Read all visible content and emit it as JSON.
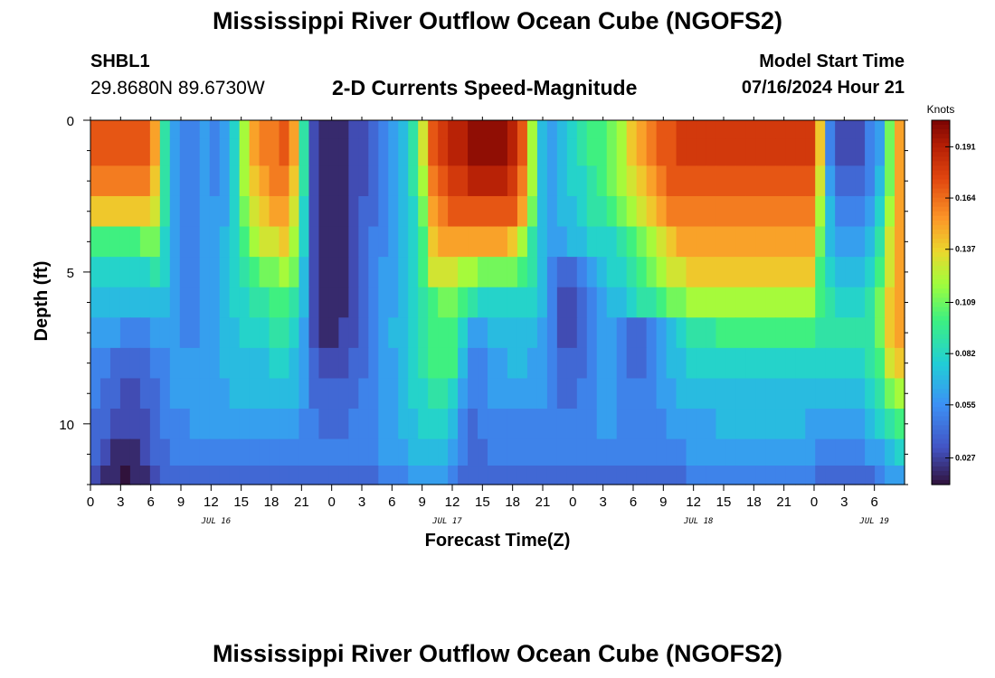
{
  "title": "Mississippi River Outflow Ocean Cube (NGOFS2)",
  "title_repeat": "Mississippi River Outflow Ocean Cube (NGOFS2)",
  "station": {
    "id": "SHBL1",
    "coords": "29.8680N  89.6730W"
  },
  "variable_title": "2-D Currents Speed-Magnitude",
  "model_start": {
    "label": "Model Start Time",
    "value": "07/16/2024 Hour 21"
  },
  "chart_data": {
    "type": "heatmap",
    "title": "2-D Currents Speed-Magnitude",
    "xlabel": "Forecast Time(Z)",
    "ylabel": "Depth (ft)",
    "colorbar_label": "Knots",
    "colorbar_ticks": [
      "0.027",
      "0.055",
      "0.082",
      "0.109",
      "0.137",
      "0.164",
      "0.191"
    ],
    "colorbar_range": [
      0.013,
      0.205
    ],
    "x_range_hours": [
      0,
      81
    ],
    "x_tick_labels": [
      "0",
      "3",
      "6",
      "9",
      "12",
      "15",
      "18",
      "21",
      "0",
      "3",
      "6",
      "9",
      "12",
      "15",
      "18",
      "21",
      "0",
      "3",
      "6",
      "9",
      "12",
      "15",
      "18",
      "21",
      "0",
      "3",
      "6"
    ],
    "date_labels": [
      {
        "text": "JUL 16",
        "hour": 12.5
      },
      {
        "text": "JUL 17",
        "hour": 35.5
      },
      {
        "text": "JUL 18",
        "hour": 60.5
      },
      {
        "text": "JUL 19",
        "hour": 78
      }
    ],
    "y_range_ft": [
      0,
      12
    ],
    "y_tick_labels": [
      "0",
      "5",
      "10"
    ],
    "y_tick_values": [
      0,
      5,
      10
    ],
    "depth_layers_ft": [
      0.25,
      1.0,
      2.0,
      3.0,
      4.0,
      5.0,
      6.0,
      7.0,
      8.0,
      9.0,
      10.0,
      11.0,
      11.75
    ],
    "speed_knots": [
      [
        0.17,
        0.17,
        0.17,
        0.17,
        0.17,
        0.17,
        0.15,
        0.09,
        0.06,
        0.05,
        0.05,
        0.06,
        0.05,
        0.06,
        0.08,
        0.12,
        0.15,
        0.16,
        0.16,
        0.17,
        0.15,
        0.09,
        0.03,
        0.02,
        0.02,
        0.02,
        0.03,
        0.03,
        0.04,
        0.05,
        0.06,
        0.07,
        0.09,
        0.13,
        0.17,
        0.18,
        0.19,
        0.19,
        0.2,
        0.2,
        0.2,
        0.2,
        0.19,
        0.17,
        0.12,
        0.07,
        0.06,
        0.07,
        0.08,
        0.09,
        0.1,
        0.1,
        0.11,
        0.12,
        0.14,
        0.15,
        0.16,
        0.17,
        0.17,
        0.18,
        0.18,
        0.18,
        0.18,
        0.18,
        0.18,
        0.18,
        0.18,
        0.18,
        0.18,
        0.18,
        0.18,
        0.18,
        0.18,
        0.14,
        0.05,
        0.03,
        0.03,
        0.03,
        0.05,
        0.06,
        0.11,
        0.15
      ],
      [
        0.17,
        0.17,
        0.17,
        0.17,
        0.17,
        0.17,
        0.15,
        0.09,
        0.06,
        0.05,
        0.05,
        0.06,
        0.05,
        0.06,
        0.08,
        0.12,
        0.15,
        0.16,
        0.16,
        0.17,
        0.15,
        0.09,
        0.03,
        0.02,
        0.02,
        0.02,
        0.03,
        0.03,
        0.04,
        0.05,
        0.06,
        0.07,
        0.09,
        0.13,
        0.17,
        0.18,
        0.19,
        0.19,
        0.2,
        0.2,
        0.2,
        0.2,
        0.19,
        0.17,
        0.12,
        0.07,
        0.06,
        0.07,
        0.08,
        0.09,
        0.1,
        0.1,
        0.11,
        0.12,
        0.14,
        0.15,
        0.16,
        0.17,
        0.17,
        0.18,
        0.18,
        0.18,
        0.18,
        0.18,
        0.18,
        0.18,
        0.18,
        0.18,
        0.18,
        0.18,
        0.18,
        0.18,
        0.18,
        0.14,
        0.05,
        0.03,
        0.03,
        0.03,
        0.05,
        0.06,
        0.11,
        0.15
      ],
      [
        0.16,
        0.16,
        0.16,
        0.16,
        0.16,
        0.16,
        0.14,
        0.09,
        0.06,
        0.05,
        0.05,
        0.06,
        0.05,
        0.06,
        0.08,
        0.12,
        0.14,
        0.15,
        0.16,
        0.16,
        0.14,
        0.09,
        0.03,
        0.02,
        0.02,
        0.02,
        0.03,
        0.03,
        0.04,
        0.05,
        0.06,
        0.07,
        0.09,
        0.12,
        0.16,
        0.17,
        0.18,
        0.18,
        0.19,
        0.19,
        0.19,
        0.19,
        0.18,
        0.16,
        0.12,
        0.07,
        0.06,
        0.07,
        0.08,
        0.08,
        0.09,
        0.1,
        0.11,
        0.12,
        0.13,
        0.14,
        0.15,
        0.16,
        0.17,
        0.17,
        0.17,
        0.17,
        0.17,
        0.17,
        0.17,
        0.17,
        0.17,
        0.17,
        0.17,
        0.17,
        0.17,
        0.17,
        0.17,
        0.13,
        0.06,
        0.04,
        0.04,
        0.04,
        0.05,
        0.07,
        0.11,
        0.15
      ],
      [
        0.14,
        0.14,
        0.14,
        0.14,
        0.14,
        0.14,
        0.13,
        0.09,
        0.06,
        0.05,
        0.05,
        0.06,
        0.06,
        0.06,
        0.08,
        0.11,
        0.13,
        0.14,
        0.15,
        0.15,
        0.13,
        0.08,
        0.03,
        0.02,
        0.02,
        0.02,
        0.03,
        0.04,
        0.04,
        0.05,
        0.06,
        0.07,
        0.08,
        0.11,
        0.15,
        0.16,
        0.17,
        0.17,
        0.17,
        0.17,
        0.17,
        0.17,
        0.17,
        0.15,
        0.11,
        0.07,
        0.06,
        0.07,
        0.07,
        0.08,
        0.09,
        0.09,
        0.1,
        0.11,
        0.12,
        0.13,
        0.14,
        0.15,
        0.16,
        0.16,
        0.16,
        0.16,
        0.16,
        0.16,
        0.16,
        0.16,
        0.16,
        0.16,
        0.16,
        0.16,
        0.16,
        0.16,
        0.16,
        0.12,
        0.07,
        0.05,
        0.05,
        0.05,
        0.06,
        0.08,
        0.12,
        0.15
      ],
      [
        0.1,
        0.1,
        0.1,
        0.1,
        0.1,
        0.11,
        0.11,
        0.08,
        0.06,
        0.05,
        0.05,
        0.06,
        0.06,
        0.07,
        0.08,
        0.1,
        0.12,
        0.13,
        0.13,
        0.14,
        0.12,
        0.08,
        0.03,
        0.02,
        0.02,
        0.02,
        0.03,
        0.04,
        0.05,
        0.05,
        0.06,
        0.07,
        0.08,
        0.1,
        0.14,
        0.15,
        0.15,
        0.15,
        0.15,
        0.15,
        0.15,
        0.15,
        0.14,
        0.12,
        0.09,
        0.07,
        0.06,
        0.06,
        0.07,
        0.07,
        0.08,
        0.08,
        0.08,
        0.09,
        0.1,
        0.11,
        0.12,
        0.13,
        0.14,
        0.15,
        0.15,
        0.15,
        0.15,
        0.15,
        0.15,
        0.15,
        0.15,
        0.15,
        0.15,
        0.15,
        0.15,
        0.15,
        0.15,
        0.11,
        0.07,
        0.06,
        0.06,
        0.06,
        0.07,
        0.09,
        0.13,
        0.15
      ],
      [
        0.08,
        0.08,
        0.08,
        0.08,
        0.08,
        0.08,
        0.09,
        0.08,
        0.06,
        0.05,
        0.05,
        0.06,
        0.06,
        0.07,
        0.08,
        0.09,
        0.1,
        0.11,
        0.11,
        0.12,
        0.11,
        0.07,
        0.03,
        0.02,
        0.02,
        0.02,
        0.03,
        0.04,
        0.05,
        0.06,
        0.06,
        0.07,
        0.08,
        0.1,
        0.13,
        0.13,
        0.13,
        0.12,
        0.12,
        0.11,
        0.11,
        0.11,
        0.11,
        0.1,
        0.09,
        0.07,
        0.05,
        0.04,
        0.04,
        0.05,
        0.06,
        0.07,
        0.08,
        0.08,
        0.09,
        0.1,
        0.11,
        0.12,
        0.13,
        0.13,
        0.14,
        0.14,
        0.14,
        0.14,
        0.14,
        0.14,
        0.14,
        0.14,
        0.14,
        0.14,
        0.14,
        0.14,
        0.14,
        0.1,
        0.08,
        0.07,
        0.07,
        0.07,
        0.08,
        0.1,
        0.13,
        0.15
      ],
      [
        0.07,
        0.07,
        0.07,
        0.07,
        0.07,
        0.07,
        0.07,
        0.07,
        0.06,
        0.05,
        0.05,
        0.06,
        0.06,
        0.07,
        0.08,
        0.08,
        0.09,
        0.09,
        0.1,
        0.1,
        0.09,
        0.07,
        0.03,
        0.02,
        0.02,
        0.02,
        0.03,
        0.04,
        0.05,
        0.06,
        0.06,
        0.07,
        0.08,
        0.09,
        0.1,
        0.11,
        0.11,
        0.1,
        0.09,
        0.08,
        0.08,
        0.08,
        0.08,
        0.08,
        0.08,
        0.07,
        0.05,
        0.03,
        0.03,
        0.04,
        0.05,
        0.06,
        0.07,
        0.07,
        0.08,
        0.09,
        0.09,
        0.1,
        0.11,
        0.11,
        0.12,
        0.12,
        0.12,
        0.12,
        0.12,
        0.12,
        0.12,
        0.12,
        0.12,
        0.12,
        0.12,
        0.12,
        0.12,
        0.1,
        0.09,
        0.08,
        0.08,
        0.08,
        0.09,
        0.11,
        0.14,
        0.15
      ],
      [
        0.06,
        0.06,
        0.06,
        0.05,
        0.05,
        0.05,
        0.06,
        0.06,
        0.06,
        0.05,
        0.05,
        0.06,
        0.06,
        0.07,
        0.07,
        0.08,
        0.08,
        0.08,
        0.09,
        0.09,
        0.08,
        0.06,
        0.03,
        0.02,
        0.02,
        0.03,
        0.03,
        0.04,
        0.05,
        0.06,
        0.07,
        0.07,
        0.08,
        0.09,
        0.1,
        0.1,
        0.1,
        0.08,
        0.06,
        0.06,
        0.07,
        0.07,
        0.07,
        0.07,
        0.07,
        0.06,
        0.05,
        0.03,
        0.03,
        0.04,
        0.05,
        0.06,
        0.06,
        0.05,
        0.04,
        0.04,
        0.05,
        0.06,
        0.07,
        0.08,
        0.09,
        0.09,
        0.09,
        0.1,
        0.1,
        0.1,
        0.1,
        0.1,
        0.1,
        0.1,
        0.1,
        0.1,
        0.1,
        0.09,
        0.09,
        0.09,
        0.09,
        0.09,
        0.09,
        0.11,
        0.14,
        0.15
      ],
      [
        0.05,
        0.05,
        0.04,
        0.04,
        0.04,
        0.04,
        0.05,
        0.05,
        0.06,
        0.06,
        0.06,
        0.06,
        0.06,
        0.07,
        0.07,
        0.07,
        0.07,
        0.07,
        0.08,
        0.08,
        0.07,
        0.06,
        0.04,
        0.03,
        0.03,
        0.03,
        0.04,
        0.04,
        0.05,
        0.06,
        0.06,
        0.07,
        0.08,
        0.09,
        0.1,
        0.1,
        0.1,
        0.07,
        0.05,
        0.05,
        0.06,
        0.06,
        0.07,
        0.07,
        0.06,
        0.06,
        0.05,
        0.04,
        0.04,
        0.04,
        0.05,
        0.06,
        0.06,
        0.05,
        0.04,
        0.04,
        0.05,
        0.06,
        0.07,
        0.07,
        0.08,
        0.08,
        0.08,
        0.08,
        0.08,
        0.08,
        0.08,
        0.08,
        0.08,
        0.08,
        0.08,
        0.08,
        0.08,
        0.08,
        0.08,
        0.08,
        0.08,
        0.08,
        0.09,
        0.1,
        0.13,
        0.14
      ],
      [
        0.05,
        0.04,
        0.04,
        0.03,
        0.03,
        0.04,
        0.04,
        0.05,
        0.06,
        0.06,
        0.06,
        0.06,
        0.06,
        0.06,
        0.07,
        0.07,
        0.07,
        0.07,
        0.07,
        0.07,
        0.07,
        0.06,
        0.04,
        0.04,
        0.04,
        0.04,
        0.04,
        0.05,
        0.05,
        0.06,
        0.06,
        0.07,
        0.08,
        0.08,
        0.09,
        0.09,
        0.08,
        0.06,
        0.05,
        0.05,
        0.06,
        0.06,
        0.06,
        0.06,
        0.06,
        0.06,
        0.05,
        0.04,
        0.04,
        0.05,
        0.05,
        0.06,
        0.06,
        0.05,
        0.05,
        0.05,
        0.05,
        0.06,
        0.06,
        0.07,
        0.07,
        0.07,
        0.07,
        0.07,
        0.07,
        0.07,
        0.07,
        0.07,
        0.07,
        0.07,
        0.07,
        0.07,
        0.07,
        0.07,
        0.07,
        0.07,
        0.07,
        0.07,
        0.08,
        0.09,
        0.11,
        0.12
      ],
      [
        0.04,
        0.04,
        0.03,
        0.03,
        0.03,
        0.03,
        0.04,
        0.05,
        0.05,
        0.05,
        0.06,
        0.06,
        0.06,
        0.06,
        0.06,
        0.06,
        0.06,
        0.06,
        0.06,
        0.06,
        0.06,
        0.05,
        0.05,
        0.04,
        0.04,
        0.04,
        0.05,
        0.05,
        0.05,
        0.06,
        0.06,
        0.07,
        0.07,
        0.08,
        0.08,
        0.08,
        0.07,
        0.05,
        0.04,
        0.05,
        0.05,
        0.05,
        0.05,
        0.05,
        0.05,
        0.05,
        0.05,
        0.05,
        0.05,
        0.05,
        0.05,
        0.06,
        0.06,
        0.05,
        0.05,
        0.05,
        0.05,
        0.05,
        0.06,
        0.06,
        0.06,
        0.06,
        0.06,
        0.07,
        0.07,
        0.07,
        0.07,
        0.07,
        0.07,
        0.07,
        0.07,
        0.07,
        0.06,
        0.06,
        0.06,
        0.06,
        0.06,
        0.06,
        0.07,
        0.08,
        0.09,
        0.1
      ],
      [
        0.04,
        0.03,
        0.02,
        0.02,
        0.02,
        0.03,
        0.04,
        0.04,
        0.05,
        0.05,
        0.05,
        0.05,
        0.05,
        0.05,
        0.05,
        0.05,
        0.05,
        0.05,
        0.05,
        0.05,
        0.05,
        0.05,
        0.05,
        0.05,
        0.05,
        0.05,
        0.05,
        0.05,
        0.05,
        0.06,
        0.06,
        0.06,
        0.07,
        0.07,
        0.07,
        0.07,
        0.06,
        0.05,
        0.04,
        0.04,
        0.05,
        0.05,
        0.05,
        0.05,
        0.05,
        0.05,
        0.05,
        0.05,
        0.05,
        0.05,
        0.05,
        0.05,
        0.05,
        0.05,
        0.05,
        0.05,
        0.05,
        0.05,
        0.05,
        0.05,
        0.06,
        0.06,
        0.06,
        0.06,
        0.06,
        0.06,
        0.06,
        0.06,
        0.06,
        0.06,
        0.06,
        0.06,
        0.06,
        0.05,
        0.05,
        0.05,
        0.05,
        0.05,
        0.06,
        0.06,
        0.07,
        0.08
      ],
      [
        0.03,
        0.02,
        0.02,
        0.01,
        0.02,
        0.02,
        0.03,
        0.04,
        0.04,
        0.04,
        0.04,
        0.04,
        0.04,
        0.04,
        0.04,
        0.04,
        0.04,
        0.04,
        0.04,
        0.04,
        0.04,
        0.04,
        0.04,
        0.04,
        0.04,
        0.04,
        0.04,
        0.04,
        0.04,
        0.05,
        0.05,
        0.05,
        0.06,
        0.06,
        0.06,
        0.06,
        0.05,
        0.04,
        0.04,
        0.04,
        0.04,
        0.04,
        0.04,
        0.04,
        0.04,
        0.04,
        0.04,
        0.04,
        0.04,
        0.04,
        0.04,
        0.04,
        0.04,
        0.04,
        0.04,
        0.04,
        0.04,
        0.04,
        0.04,
        0.04,
        0.05,
        0.05,
        0.05,
        0.05,
        0.05,
        0.05,
        0.05,
        0.05,
        0.05,
        0.05,
        0.05,
        0.05,
        0.05,
        0.04,
        0.04,
        0.04,
        0.04,
        0.04,
        0.04,
        0.05,
        0.06,
        0.06
      ]
    ]
  }
}
